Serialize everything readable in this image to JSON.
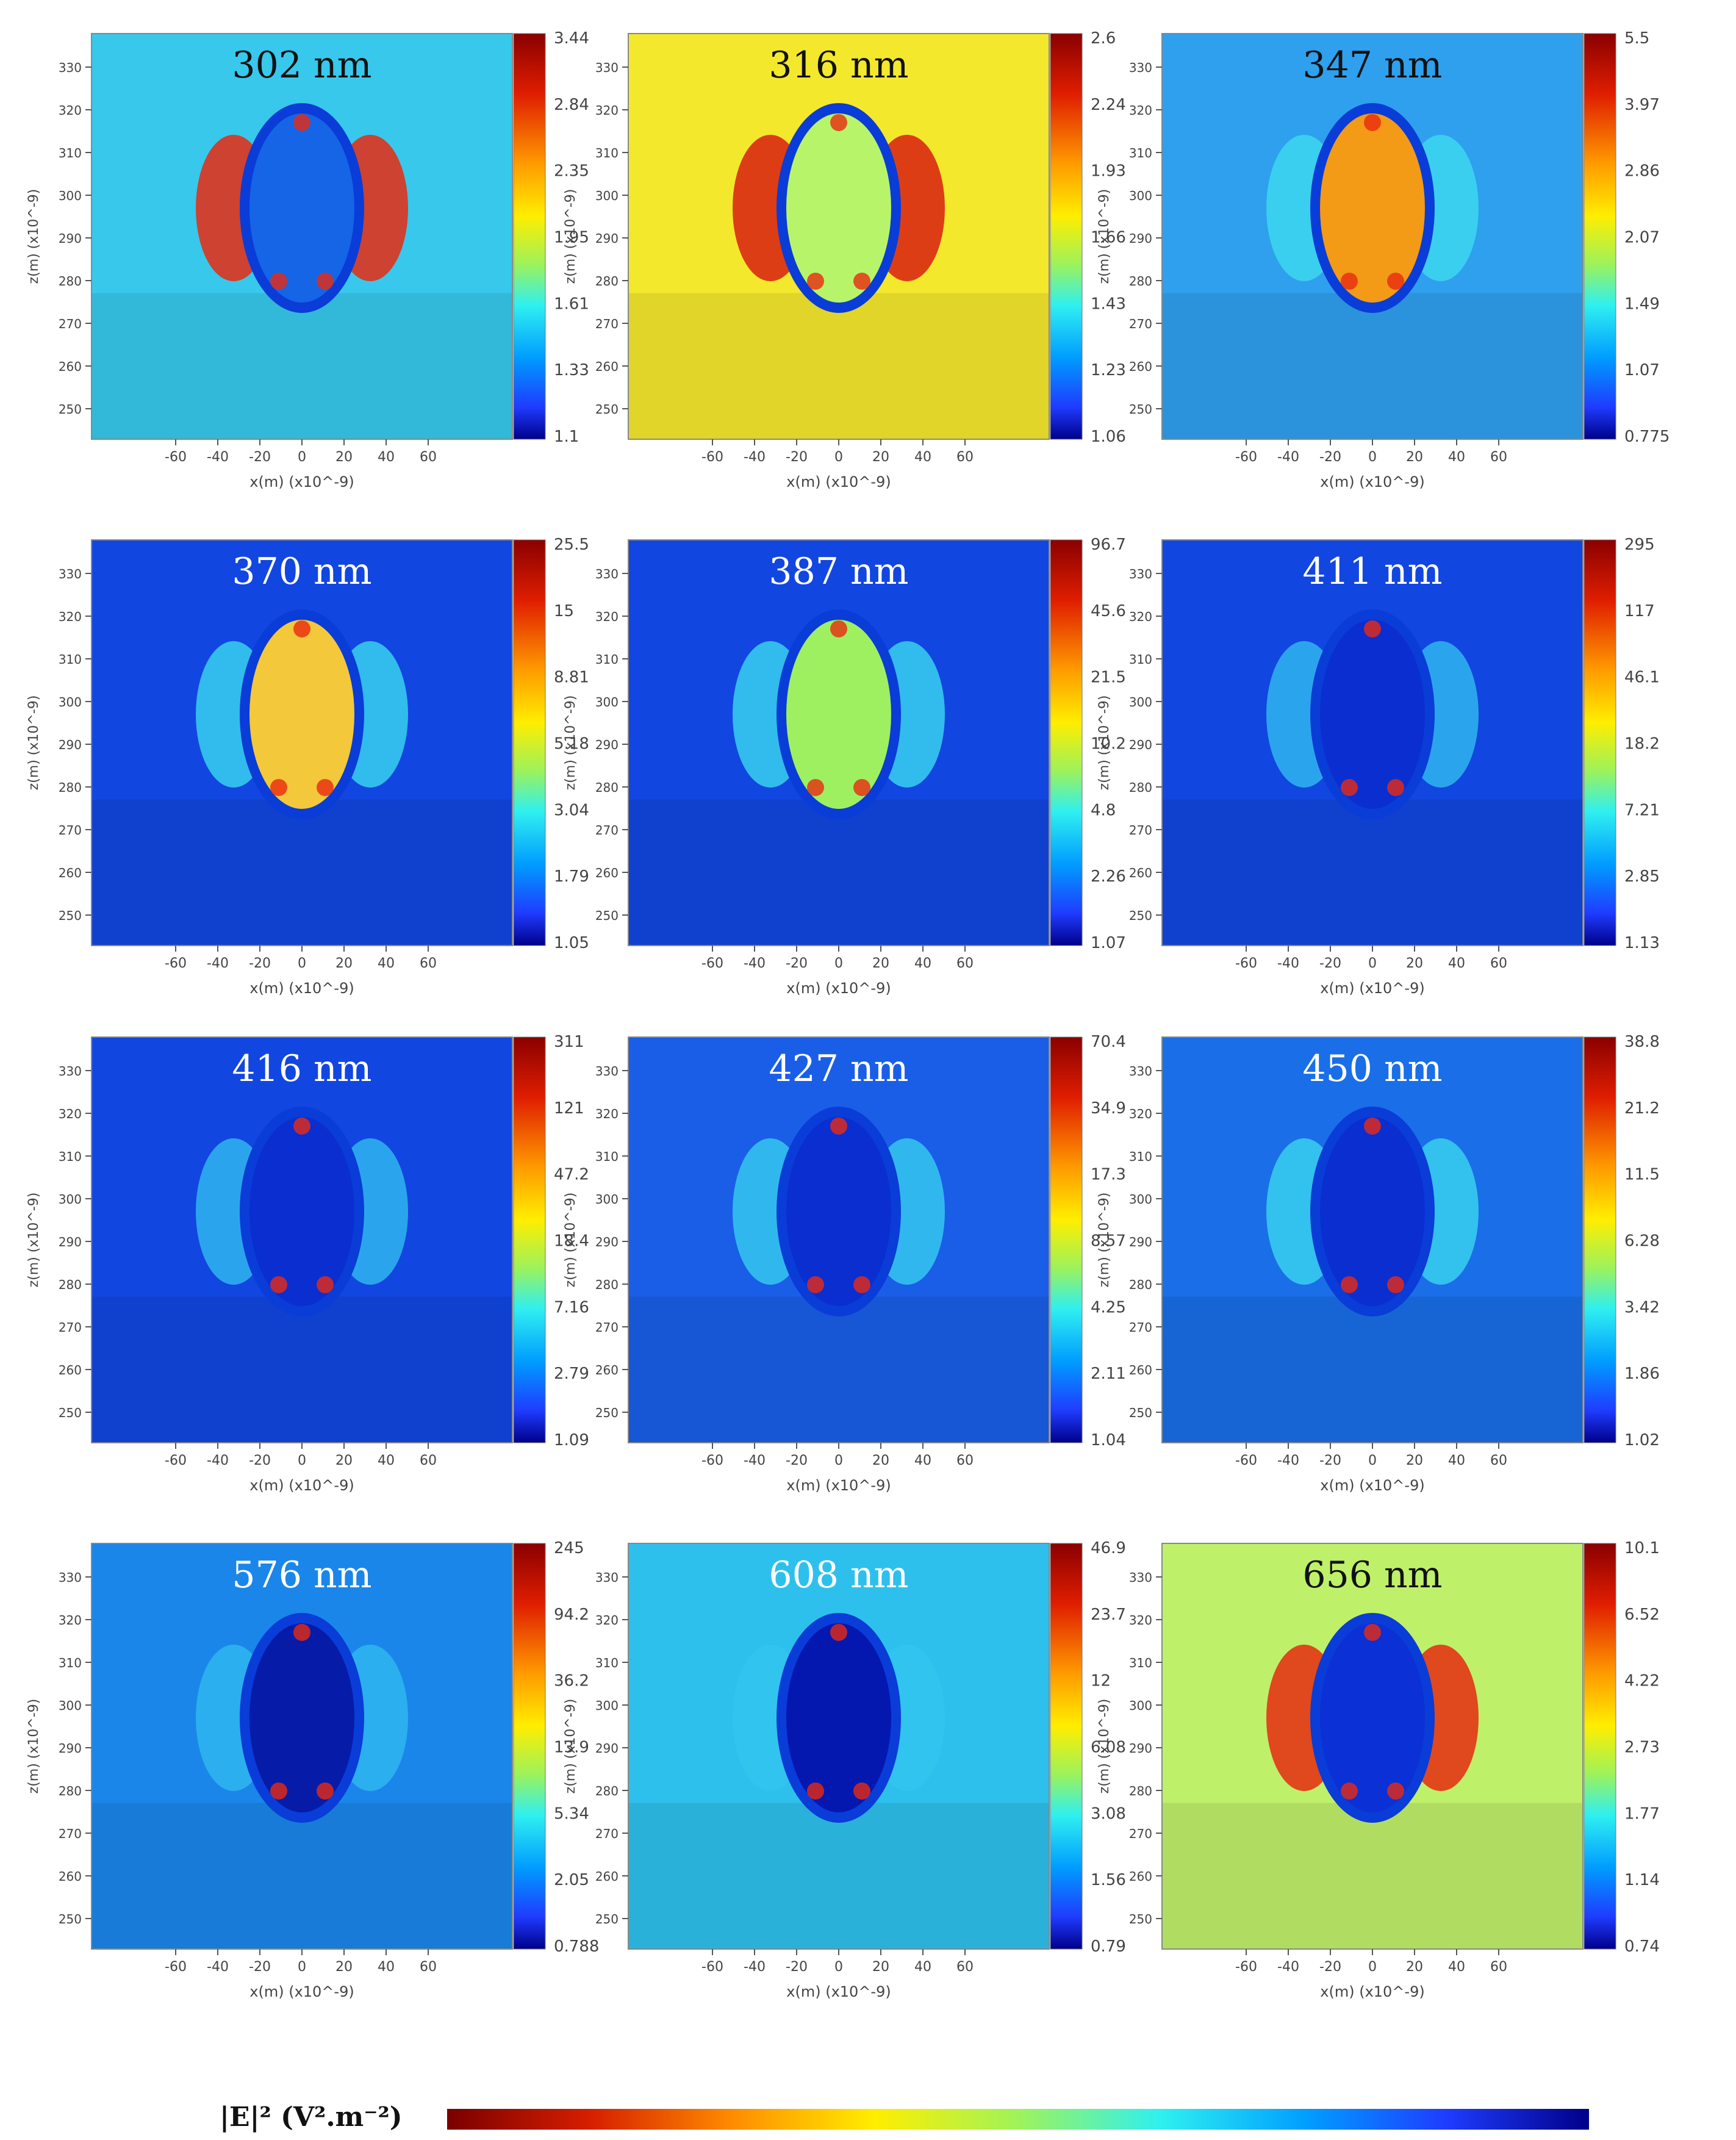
{
  "figure": {
    "x_axis_label": "x(m) (x10^-9)",
    "z_axis_label": "z(m) (x10^-9)",
    "x_ticks": [
      "-60",
      "-40",
      "-20",
      "0",
      "20",
      "40",
      "60"
    ],
    "z_ticks": [
      "330",
      "320",
      "310",
      "300",
      "290",
      "280",
      "270",
      "260",
      "250"
    ],
    "colorbar_label": "|E|² (V².m⁻²)",
    "colorbar_colors": [
      "#7a0000",
      "#d61e00",
      "#ff8c00",
      "#ffee00",
      "#9ff35a",
      "#2ff0f0",
      "#00a0ff",
      "#1f3cff",
      "#00008a"
    ]
  },
  "panels": [
    {
      "title": "302 nm",
      "colorbar": [
        "3.44",
        "2.84",
        "2.35",
        "1.95",
        "1.61",
        "1.33",
        "1.1"
      ],
      "background": "#37c8ec",
      "lobes": "#e82a10",
      "inner": "#1565e6",
      "title_color": "#111111"
    },
    {
      "title": "316 nm",
      "colorbar": [
        "2.6",
        "2.24",
        "1.93",
        "1.66",
        "1.43",
        "1.23",
        "1.06"
      ],
      "background": "#f3e82c",
      "lobes": "#d81e10",
      "inner": "#b8f46a",
      "title_color": "#111111"
    },
    {
      "title": "347 nm",
      "colorbar": [
        "5.5",
        "3.97",
        "2.86",
        "2.07",
        "1.49",
        "1.07",
        "0.775"
      ],
      "background": "#2ea0ee",
      "lobes": "#3cd7ee",
      "inner": "#f39a16",
      "title_color": "#111111"
    },
    {
      "title": "370 nm",
      "colorbar": [
        "25.5",
        "15",
        "8.81",
        "5.18",
        "3.04",
        "1.79",
        "1.05"
      ],
      "background": "#1246e0",
      "lobes": "#38d0ee",
      "inner": "#f3c83a",
      "title_color": "#ffffff"
    },
    {
      "title": "387 nm",
      "colorbar": [
        "96.7",
        "45.6",
        "21.5",
        "10.2",
        "4.8",
        "2.26",
        "1.07"
      ],
      "background": "#1246e0",
      "lobes": "#38d0ee",
      "inner": "#9ef060",
      "title_color": "#ffffff"
    },
    {
      "title": "411 nm",
      "colorbar": [
        "295",
        "117",
        "46.1",
        "18.2",
        "7.21",
        "2.85",
        "1.13"
      ],
      "background": "#1246e0",
      "lobes": "#2fb6ee",
      "inner": "#0a2ed0",
      "title_color": "#ffffff"
    },
    {
      "title": "416 nm",
      "colorbar": [
        "311",
        "121",
        "47.2",
        "18.4",
        "7.16",
        "2.79",
        "1.09"
      ],
      "background": "#1246e0",
      "lobes": "#2fb6ee",
      "inner": "#0a2ed0",
      "title_color": "#ffffff"
    },
    {
      "title": "427 nm",
      "colorbar": [
        "70.4",
        "34.9",
        "17.3",
        "8.57",
        "4.25",
        "2.11",
        "1.04"
      ],
      "background": "#1a5ee8",
      "lobes": "#35c8ee",
      "inner": "#0a2ed0",
      "title_color": "#ffffff"
    },
    {
      "title": "450 nm",
      "colorbar": [
        "38.8",
        "21.2",
        "11.5",
        "6.28",
        "3.42",
        "1.86",
        "1.02"
      ],
      "background": "#1a6ee8",
      "lobes": "#38d0ee",
      "inner": "#0a2ed0",
      "title_color": "#ffffff"
    },
    {
      "title": "576 nm",
      "colorbar": [
        "245",
        "94.2",
        "36.2",
        "13.9",
        "5.34",
        "2.05",
        "0.788"
      ],
      "background": "#1a86ea",
      "lobes": "#2fb6ee",
      "inner": "#061ca8",
      "title_color": "#ffffff"
    },
    {
      "title": "608 nm",
      "colorbar": [
        "46.9",
        "23.7",
        "12",
        "6.08",
        "3.08",
        "1.56",
        "0.79"
      ],
      "background": "#2ec0ec",
      "lobes": "#30c4ee",
      "inner": "#0418b0",
      "title_color": "#ffffff"
    },
    {
      "title": "656 nm",
      "colorbar": [
        "10.1",
        "6.52",
        "4.22",
        "2.73",
        "1.77",
        "1.14",
        "0.74"
      ],
      "background": "#bff06a",
      "lobes": "#e52a10",
      "inner": "#0a30d6",
      "title_color": "#111111"
    }
  ]
}
